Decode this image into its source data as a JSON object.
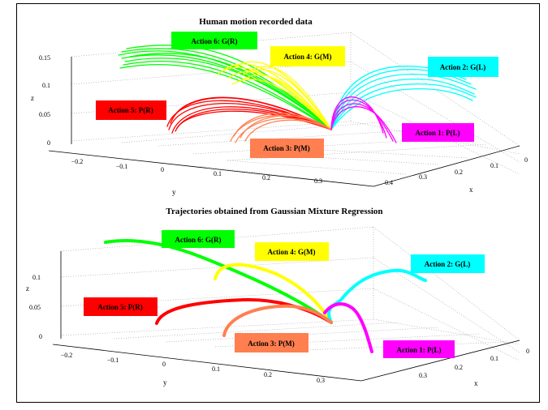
{
  "chart_data": [
    {
      "type": "scatter3d",
      "title": "Human motion recorded data",
      "xlabel": "x",
      "ylabel": "y",
      "zlabel": "z",
      "x_ticks": [
        "0",
        "0.1",
        "0.2",
        "0.3",
        "0.4"
      ],
      "y_ticks": [
        "−0.2",
        "−0.1",
        "0",
        "0.1",
        "0.2",
        "0.3"
      ],
      "z_ticks": [
        "0",
        "0.05",
        "0.1",
        "0.15"
      ],
      "grid": true,
      "actions": [
        {
          "label": "Action 1: P(L)",
          "color": "#ff00ff"
        },
        {
          "label": "Action 2: G(L)",
          "color": "#00ffff"
        },
        {
          "label": "Action 3: P(M)",
          "color": "#ff7f50"
        },
        {
          "label": "Action 4: G(M)",
          "color": "#ffff00"
        },
        {
          "label": "Action 5: P(R)",
          "color": "#ff0000"
        },
        {
          "label": "Action 6: G(R)",
          "color": "#00ff00"
        }
      ]
    },
    {
      "type": "scatter3d",
      "title": "Trajectories obtained from Gaussian Mixture Regression",
      "xlabel": "x",
      "ylabel": "y",
      "zlabel": "z",
      "x_ticks": [
        "0",
        "0.1",
        "0.2",
        "0.3"
      ],
      "y_ticks": [
        "−0.2",
        "−0.1",
        "0",
        "0.1",
        "0.2",
        "0.3"
      ],
      "z_ticks": [
        "0",
        "0.05",
        "0.1"
      ],
      "grid": true,
      "actions": [
        {
          "label": "Action 1: P(L)",
          "color": "#ff00ff"
        },
        {
          "label": "Action 2: G(L)",
          "color": "#00ffff"
        },
        {
          "label": "Action 3: P(M)",
          "color": "#ff7f50"
        },
        {
          "label": "Action 4: G(M)",
          "color": "#ffff00"
        },
        {
          "label": "Action 5: P(R)",
          "color": "#ff0000"
        },
        {
          "label": "Action 6: G(R)",
          "color": "#00ff00"
        }
      ]
    }
  ]
}
